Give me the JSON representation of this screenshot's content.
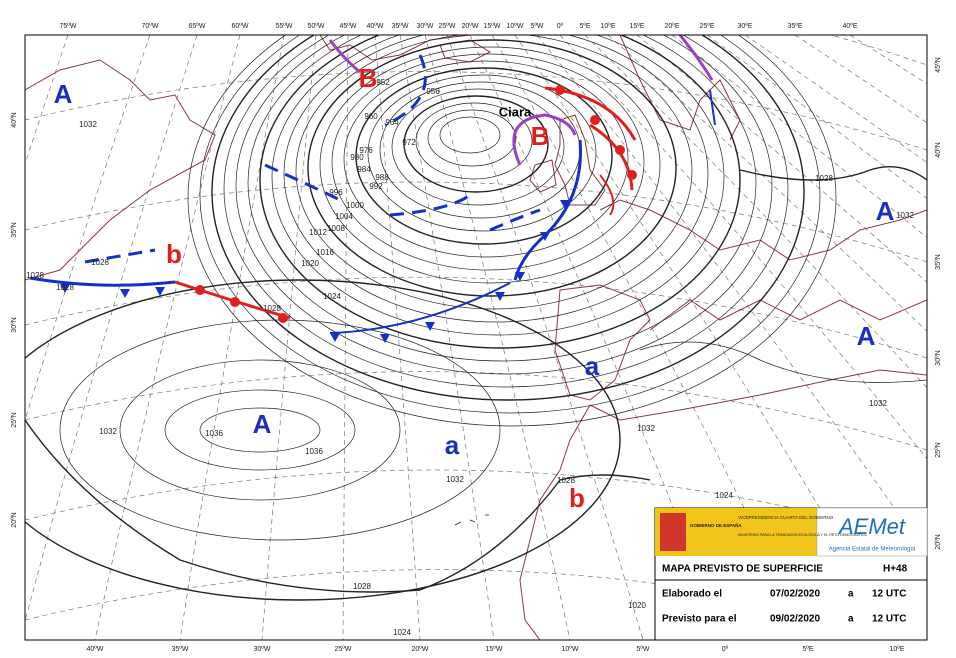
{
  "map": {
    "longitude_labels_top": [
      "75ºW",
      "70ºW",
      "65ºW",
      "60ºW",
      "55ºW",
      "50ºW",
      "45ºW",
      "40ºW",
      "35ºW",
      "30ºW",
      "25ºW",
      "20ºW",
      "15ºW",
      "10ºW",
      "5ºW",
      "0º",
      "5ºE",
      "10ºE",
      "15ºE",
      "20ºE",
      "25ºE",
      "30ºE",
      "35ºE",
      "40ºE"
    ],
    "longitude_labels_bottom": [
      "40ºW",
      "35ºW",
      "30ºW",
      "25ºW",
      "20ºW",
      "15ºW",
      "10ºW",
      "5ºW",
      "0º",
      "5ºE",
      "10ºE"
    ],
    "latitude_labels_left": [
      "40ºN",
      "35ºN",
      "30ºN",
      "25ºN",
      "20ºN"
    ],
    "latitude_labels_right": [
      "45ºN",
      "40ºN",
      "35ºN",
      "30ºN",
      "25ºN",
      "20ºN"
    ],
    "pressure_centers": [
      "A",
      "B",
      "B",
      "A",
      "A",
      "a",
      "A",
      "a",
      "b",
      "b"
    ],
    "storm_name": "Ciara",
    "isobar_labels": [
      "1032",
      "952",
      "956",
      "960",
      "964",
      "972",
      "976",
      "980",
      "984",
      "988",
      "992",
      "996",
      "1000",
      "1004",
      "1008",
      "1012",
      "1016",
      "1020",
      "1024",
      "1028",
      "1028",
      "1028",
      "1028",
      "1036",
      "1036",
      "1032",
      "1032",
      "1032",
      "1028",
      "1028",
      "1024",
      "1020",
      "1024",
      "1032",
      "1028",
      "1032"
    ]
  },
  "info_box": {
    "government": "GOBIERNO DE ESPAÑA",
    "vice_presidency": "VICEPRESIDENCIA CUARTA DEL GOBIERNO",
    "ministry": "MINISTERIO PARA LA TRANSICIÓN ECOLÓGICA Y EL RETO DEMOGRÁFICO",
    "agency_logo": "AEMet",
    "agency_name": "Agencia Estatal de Meteorología",
    "title": "MAPA PREVISTO DE SUPERFICIE",
    "forecast_hour": "H+48",
    "rows": [
      [
        "Elaborado el",
        "07/02/2020",
        "a",
        "12 UTC"
      ],
      [
        "Previsto para el",
        "09/02/2020",
        "a",
        "12 UTC"
      ]
    ]
  }
}
